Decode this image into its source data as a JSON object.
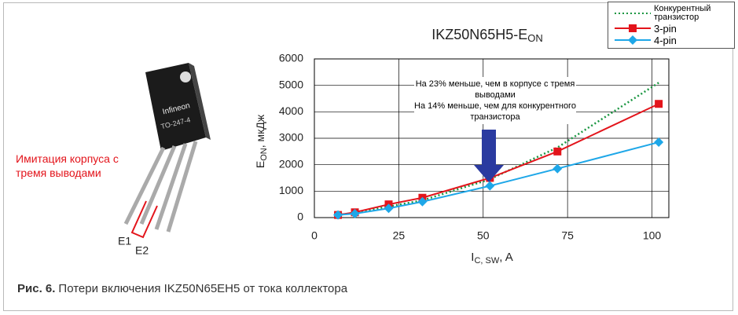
{
  "chart_data": {
    "type": "line",
    "title": {
      "main": "IKZ50N65H5-E",
      "sub": "ON"
    },
    "x_label": {
      "main": "I",
      "sub": "C, SW",
      "rest": ", A"
    },
    "y_label": {
      "main": "E",
      "sub": "ON",
      "rest": ", мкДж"
    },
    "x": [
      7,
      12,
      22,
      32,
      52,
      72,
      102
    ],
    "series": [
      {
        "name": "Конкурентный транзистор",
        "color": "#1a9641",
        "style": "dotted",
        "values": [
          100,
          180,
          420,
          650,
          1450,
          2650,
          5100
        ]
      },
      {
        "name": "3-pin",
        "color": "#e3141b",
        "marker": "square",
        "values": [
          100,
          200,
          500,
          750,
          1500,
          2500,
          4300
        ]
      },
      {
        "name": "4-pin",
        "color": "#1ea7e8",
        "marker": "diamond",
        "values": [
          100,
          150,
          350,
          600,
          1200,
          1850,
          2850
        ]
      }
    ],
    "xlim": [
      0,
      105
    ],
    "xticks": [
      0,
      25,
      50,
      75,
      100
    ],
    "ylim": [
      0,
      6000
    ],
    "yticks": [
      0,
      1000,
      2000,
      3000,
      4000,
      5000,
      6000
    ],
    "grid": true,
    "annotation": [
      "На 23% меньше, чем в корпусе с тремя выводами",
      "На 14% меньше, чем для конкурентного транзистора"
    ]
  },
  "package": {
    "logo": "Infineon",
    "code": "TO-247-4",
    "label": "Имитация корпуса с тремя выводами",
    "pin1": "E1",
    "pin2": "E2"
  },
  "caption": {
    "label": "Рис. 6.",
    "text": "Потери включения IKZ50N65EH5 от тока коллектора"
  }
}
